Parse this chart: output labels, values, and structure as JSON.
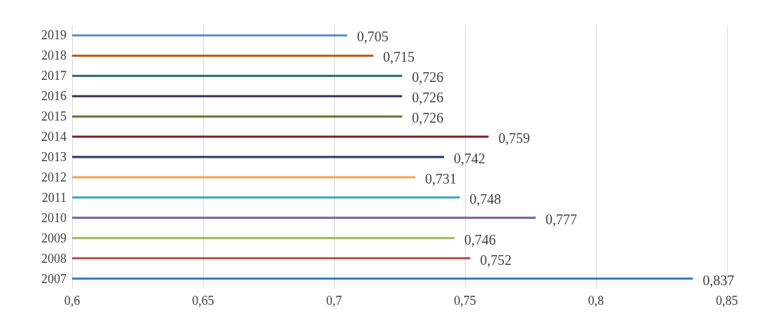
{
  "chart_data": {
    "type": "bar",
    "orientation": "horizontal",
    "categories": [
      "2019",
      "2018",
      "2017",
      "2016",
      "2015",
      "2014",
      "2013",
      "2012",
      "2011",
      "2010",
      "2009",
      "2008",
      "2007"
    ],
    "values": [
      0.705,
      0.715,
      0.726,
      0.726,
      0.726,
      0.759,
      0.742,
      0.731,
      0.748,
      0.777,
      0.746,
      0.752,
      0.837
    ],
    "colors": [
      "#5b8fd0",
      "#c55a11",
      "#1f6b75",
      "#3b2d5c",
      "#5b7a2e",
      "#7b1f1f",
      "#1f3864",
      "#f4a24c",
      "#3aa6c6",
      "#7a5ba8",
      "#9bbb59",
      "#c0504d",
      "#3d7bbf"
    ],
    "value_labels": [
      "0,705",
      "0,715",
      "0,726",
      "0,726",
      "0,726",
      "0,759",
      "0,742",
      "0,731",
      "0,748",
      "0,777",
      "0,746",
      "0,752",
      "0,837"
    ],
    "xlim": [
      0.6,
      0.85
    ],
    "xticks": [
      {
        "value": 0.6,
        "label": "0,6"
      },
      {
        "value": 0.65,
        "label": "0,65"
      },
      {
        "value": 0.7,
        "label": "0,7"
      },
      {
        "value": 0.75,
        "label": "0,75"
      },
      {
        "value": 0.8,
        "label": "0,8"
      },
      {
        "value": 0.85,
        "label": "0,85"
      }
    ],
    "grid": "x"
  }
}
